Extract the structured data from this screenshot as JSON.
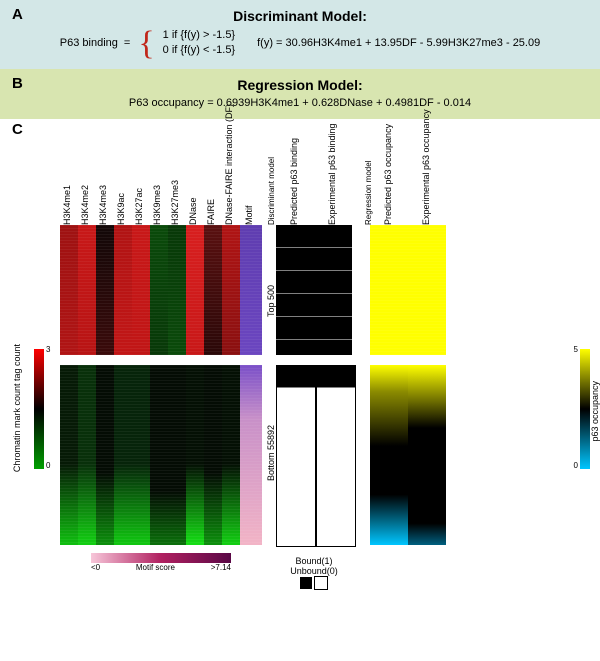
{
  "panelA": {
    "letter": "A",
    "title": "Discriminant Model:",
    "lhs": "P63 binding",
    "eq_sign": "=",
    "case1": "1   if {f(y) > -1.5}",
    "case2": "0   if {f(y) < -1.5}",
    "formula": "f(y) = 30.96H3K4me1 + 13.95DF - 5.99H3K27me3 - 25.09",
    "bg": "#d3e7e7"
  },
  "panelB": {
    "letter": "B",
    "title": "Regression Model:",
    "equation": "P63 occupancy   =   0.6939H3K4me1 + 0.628DNase + 0.4981DF - 0.014",
    "bg": "#d8e5b0"
  },
  "panelC": {
    "letter": "C",
    "feature_columns": [
      "H3K4me1",
      "H3K4me2",
      "H3K4me3",
      "H3K9ac",
      "H3K27ac",
      "H3K9me3",
      "H3K27me3",
      "DNase",
      "FAIRE",
      "DNase-FAIRE interaction (DF)",
      "Motif"
    ],
    "binding_columns": {
      "group_label": "Discriminant model",
      "cols": [
        "Predicted p63 binding",
        "Experimental p63 binding"
      ]
    },
    "occupancy_columns": {
      "group_label": "Regression model",
      "cols": [
        "Predicted p63 occupancy",
        "Experimental p63 occupancy"
      ]
    },
    "row_blocks": {
      "top_label": "Top 500",
      "bottom_label": "Bottom 55892"
    },
    "chromatin_colorbar": {
      "label": "Chromatin mark count tag count",
      "gradient": [
        "#00a000",
        "#000000",
        "#ff0000"
      ],
      "ticks": [
        "0",
        "3"
      ]
    },
    "occupancy_colorbar": {
      "label": "p63 occupancy",
      "gradient": [
        "#00c6ff",
        "#000000",
        "#ffff00"
      ],
      "ticks": [
        "0",
        "5"
      ]
    },
    "motif_colorbar": {
      "label": "Motif score",
      "gradient": [
        "#f7c6d9",
        "#b02060",
        "#5a0846"
      ],
      "ticks": [
        "<0",
        ">7.14"
      ]
    },
    "binding_legend": {
      "bound": "Bound(1)",
      "unbound": "Unbound(0)"
    },
    "palette": {
      "red": "#d81f1f",
      "dark": "#120808",
      "green": "#0fbf0f",
      "black": "#000000",
      "motif_top": "#5f3db0",
      "motif_bot": "#f2b4c6",
      "yellow": "#ffff00",
      "cyan": "#00c6ff"
    },
    "top_heat": {
      "columns_fill": [
        "linear-gradient(#9e1212,#b01414)",
        "linear-gradient(#c81818,#b81414)",
        "linear-gradient(#120808,#3a0a0a)",
        "linear-gradient(#b01414,#c21616)",
        "linear-gradient(#c81818,#c01616)",
        "linear-gradient(#0a4a0a,#083808)",
        "linear-gradient(#083808,#0a4a0a)",
        "linear-gradient(#d81f1f,#c81818)",
        "linear-gradient(#5a1010,#2a0808)",
        "linear-gradient(#b01414,#8a1010)",
        "linear-gradient(#5f3db0,#6b46c0)"
      ]
    },
    "bot_heat": {
      "columns_fill": [
        "linear-gradient(#061a06 0%,#061a06 55%,#0fbf0f 100%)",
        "linear-gradient(#08300a 0%,#08300a 55%,#12d012 100%)",
        "linear-gradient(#040c04 0%,#040c04 60%,#0c900c 100%)",
        "linear-gradient(#06240a 0%,#06240a 55%,#10c810 100%)",
        "linear-gradient(#06240a 0%,#06240a 55%,#10c810 100%)",
        "linear-gradient(#040c04 0%,#040c04 70%,#0a700a 100%)",
        "linear-gradient(#040c04 0%,#040c04 70%,#0a700a 100%)",
        "linear-gradient(#041004 0%,#041004 55%,#14e014 100%)",
        "linear-gradient(#040c04 0%,#040c04 60%,#0c900c 100%)",
        "linear-gradient(#041004 0%,#041004 55%,#12d012 100%)",
        "linear-gradient(#7a4fc8 0%,#c890c8 30%,#f2b4c6 100%)"
      ]
    },
    "binding_top_fill": "#000000",
    "binding_bot_fill": "linear-gradient(#000 0%,#000 12%,#fff 12%,#fff 100%)",
    "occ_top_fill": "#ffff00",
    "occ_bot_pred": "linear-gradient(#ffff00 0%,#8a8a00 15%,#000 45%,#000 72%,#00c6ff 100%)",
    "occ_bot_exp": "linear-gradient(#ffff00 0%,#a8a800 12%,#000 35%,#000 88%,#006080 100%)"
  }
}
